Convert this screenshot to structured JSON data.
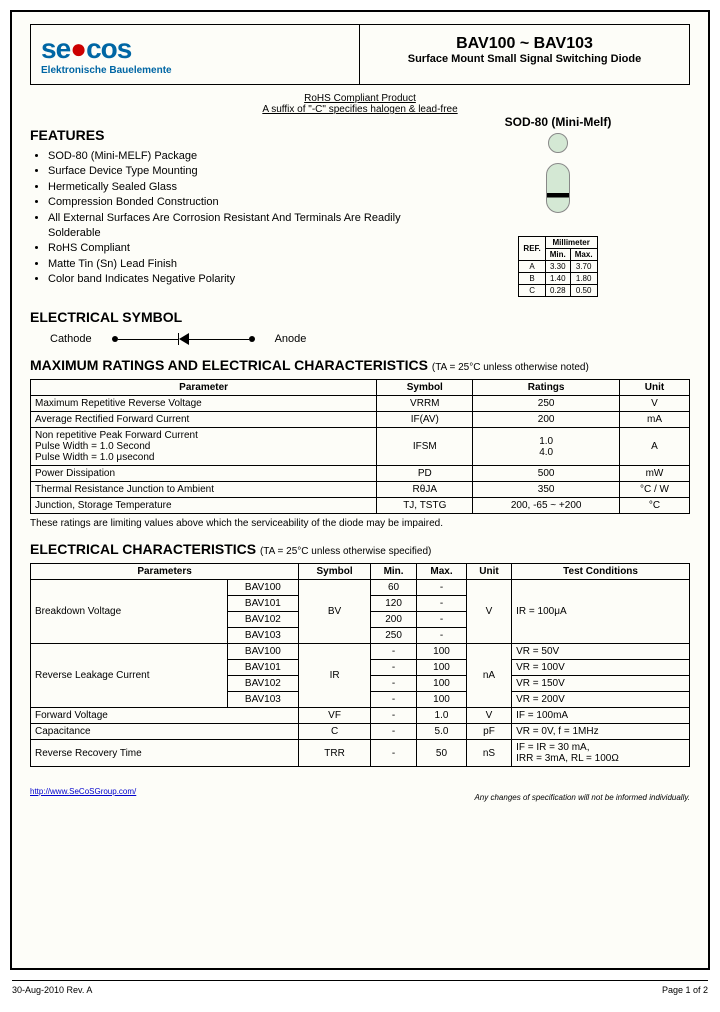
{
  "header": {
    "logo": "secos",
    "tagline": "Elektronische Bauelemente",
    "part_title": "BAV100 ~ BAV103",
    "subtitle": "Surface Mount Small Signal Switching Diode"
  },
  "rohs": {
    "line1": "RoHS Compliant Product",
    "line2": "A suffix of \"-C\" specifies halogen & lead-free"
  },
  "features": {
    "title": "FEATURES",
    "items": [
      "SOD-80 (Mini-MELF) Package",
      "Surface Device Type Mounting",
      "Hermetically Sealed Glass",
      "Compression Bonded Construction",
      "All External Surfaces Are Corrosion Resistant And Terminals Are Readily Solderable",
      "RoHS Compliant",
      "Matte Tin (Sn) Lead Finish",
      "Color band Indicates Negative Polarity"
    ]
  },
  "package": {
    "label": "SOD-80 (Mini-Melf)",
    "dim_header": [
      "REF.",
      "Min.",
      "Max."
    ],
    "dim_unit": "Millimeter",
    "dims": [
      [
        "A",
        "3.30",
        "3.70"
      ],
      [
        "B",
        "1.40",
        "1.80"
      ],
      [
        "C",
        "0.28",
        "0.50"
      ]
    ]
  },
  "symbol": {
    "title": "ELECTRICAL SYMBOL",
    "cathode": "Cathode",
    "anode": "Anode"
  },
  "max_ratings": {
    "title": "MAXIMUM RATINGS AND ELECTRICAL CHARACTERISTICS",
    "cond": "(TA = 25°C unless otherwise noted)",
    "headers": [
      "Parameter",
      "Symbol",
      "Ratings",
      "Unit"
    ],
    "rows": [
      [
        "Maximum Repetitive Reverse Voltage",
        "VRRM",
        "250",
        "V"
      ],
      [
        "Average Rectified Forward Current",
        "IF(AV)",
        "200",
        "mA"
      ],
      [
        "Non repetitive Peak Forward Current\nPulse Width = 1.0 Second\nPulse Width = 1.0 μsecond",
        "IFSM",
        "1.0\n4.0",
        "A"
      ],
      [
        "Power Dissipation",
        "PD",
        "500",
        "mW"
      ],
      [
        "Thermal Resistance Junction to Ambient",
        "RθJA",
        "350",
        "°C / W"
      ],
      [
        "Junction, Storage Temperature",
        "TJ, TSTG",
        "200, -65 ~ +200",
        "°C"
      ]
    ],
    "note": "These ratings are limiting values above which the serviceability of the diode may be impaired."
  },
  "elec_char": {
    "title": "ELECTRICAL CHARACTERISTICS",
    "cond": "(TA = 25°C unless otherwise specified)",
    "headers": [
      "Parameters",
      "",
      "Symbol",
      "Min.",
      "Max.",
      "Unit",
      "Test Conditions"
    ],
    "breakdown": {
      "label": "Breakdown Voltage",
      "symbol": "BV",
      "unit": "V",
      "cond": "IR = 100μA",
      "rows": [
        [
          "BAV100",
          "60",
          "-"
        ],
        [
          "BAV101",
          "120",
          "-"
        ],
        [
          "BAV102",
          "200",
          "-"
        ],
        [
          "BAV103",
          "250",
          "-"
        ]
      ]
    },
    "leakage": {
      "label": "Reverse Leakage Current",
      "symbol": "IR",
      "unit": "nA",
      "rows": [
        [
          "BAV100",
          "-",
          "100",
          "VR = 50V"
        ],
        [
          "BAV101",
          "-",
          "100",
          "VR = 100V"
        ],
        [
          "BAV102",
          "-",
          "100",
          "VR = 150V"
        ],
        [
          "BAV103",
          "-",
          "100",
          "VR = 200V"
        ]
      ]
    },
    "other": [
      [
        "Forward Voltage",
        "VF",
        "-",
        "1.0",
        "V",
        "IF = 100mA"
      ],
      [
        "Capacitance",
        "C",
        "-",
        "5.0",
        "pF",
        "VR = 0V, f = 1MHz"
      ],
      [
        "Reverse Recovery Time",
        "TRR",
        "-",
        "50",
        "nS",
        "IF = IR = 30 mA,\nIRR = 3mA, RL = 100Ω"
      ]
    ]
  },
  "footer": {
    "url": "http://www.SeCoSGroup.com/",
    "disclaimer": "Any changes of specification will not be informed individually.",
    "date": "30-Aug-2010 Rev. A",
    "page": "Page 1 of 2"
  }
}
